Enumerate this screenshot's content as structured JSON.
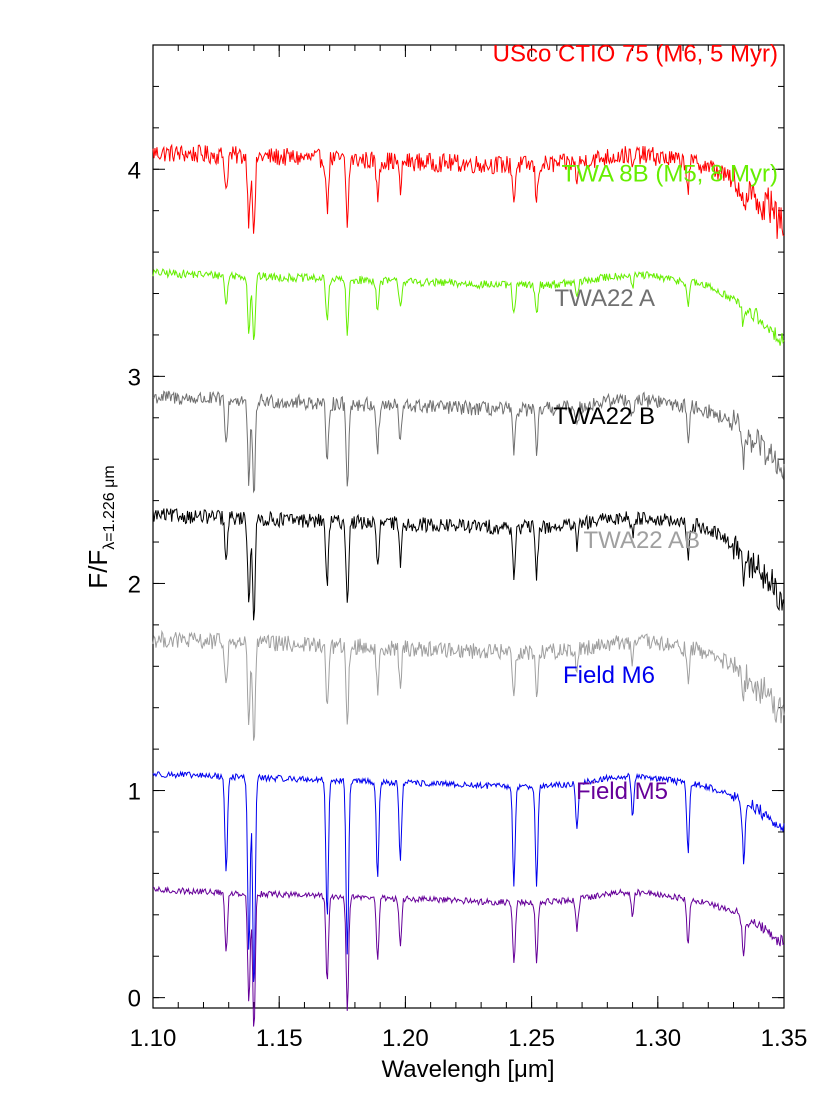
{
  "chart_data": {
    "type": "line",
    "xlabel": "Wavelengh [μm]",
    "ylabel_main": "F/F",
    "ylabel_sub": "λ=1.226 μm",
    "xlim": [
      1.1,
      1.35
    ],
    "ylim": [
      -0.05,
      4.6
    ],
    "x_ticks": [
      "1.10",
      "1.15",
      "1.20",
      "1.25",
      "1.30",
      "1.35"
    ],
    "y_ticks": [
      "0",
      "1",
      "2",
      "3",
      "4"
    ],
    "grid": false,
    "series": [
      {
        "name": "USco CTIO 75 (M6, 5 Myr)",
        "color": "#ff0000",
        "offset": 4.08,
        "noise": 0.045,
        "depth": 0.7,
        "end_drop": 0.3,
        "start": 1.1,
        "end": 1.35
      },
      {
        "name": "TWA 8B  (M5, 8 Myr)",
        "color": "#66ee00",
        "offset": 3.5,
        "noise": 0.02,
        "depth": 0.6,
        "end_drop": 0.28,
        "start": 1.1,
        "end": 1.35
      },
      {
        "name": "TWA22 A",
        "color": "#707070",
        "offset": 2.9,
        "noise": 0.035,
        "depth": 0.9,
        "end_drop": 0.3,
        "start": 1.1,
        "end": 1.35
      },
      {
        "name": "TWA22 B",
        "color": "#000000",
        "offset": 2.33,
        "noise": 0.035,
        "depth": 0.9,
        "end_drop": 0.35,
        "start": 1.1,
        "end": 1.35
      },
      {
        "name": "TWA22 AB",
        "color": "#a0a0a0",
        "offset": 1.73,
        "noise": 0.04,
        "depth": 0.9,
        "end_drop": 0.3,
        "start": 1.1,
        "end": 1.35
      },
      {
        "name": "Field M6",
        "color": "#0000ee",
        "offset": 1.08,
        "noise": 0.015,
        "depth": 1.9,
        "end_drop": 0.2,
        "start": 1.1,
        "end": 1.35
      },
      {
        "name": "Field M5",
        "color": "#660099",
        "offset": 0.52,
        "noise": 0.015,
        "depth": 1.2,
        "end_drop": 0.2,
        "start": 1.1,
        "end": 1.35
      }
    ],
    "absorption_lines": [
      1.129,
      1.138,
      1.14,
      1.169,
      1.177,
      1.189,
      1.198,
      1.243,
      1.252,
      1.268,
      1.29,
      1.312,
      1.334
    ]
  }
}
